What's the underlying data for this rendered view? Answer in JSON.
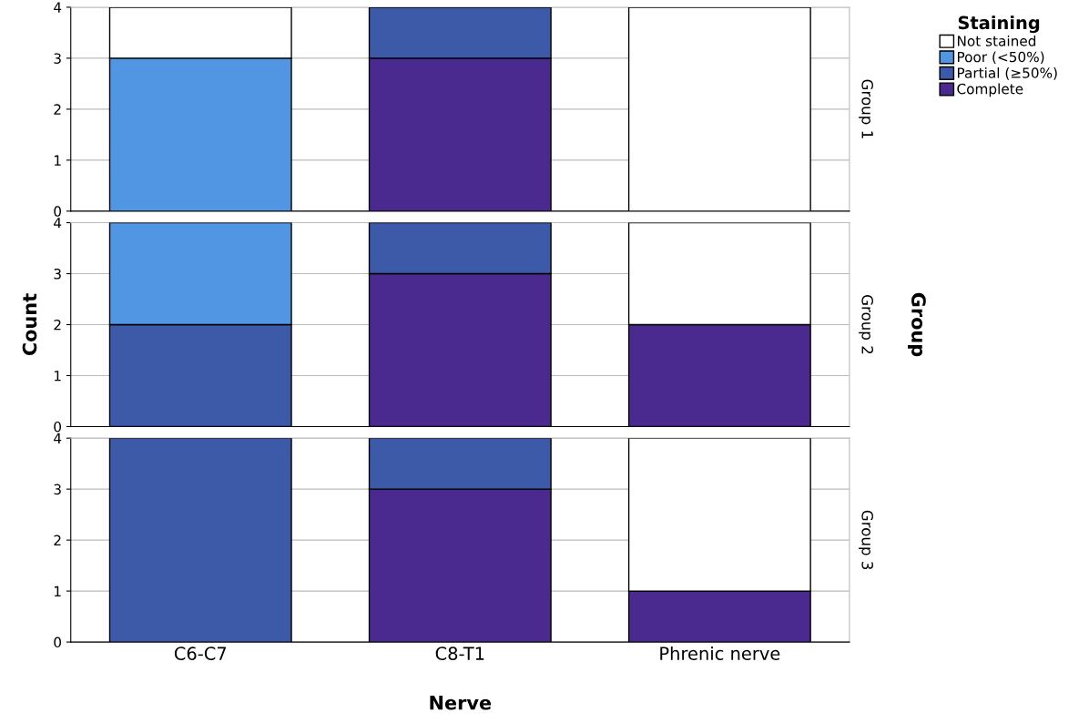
{
  "chart_data": [
    {
      "type": "bar",
      "stacked": true,
      "categories": [
        null,
        null,
        null
      ],
      "y2label": "Group 1",
      "legend_title": "Staining",
      "legend": "right",
      "ylim": [
        0,
        4
      ],
      "yticks": [
        0,
        1,
        2,
        3,
        4
      ],
      "grid": "y",
      "tick_labels": "y",
      "series": [
        {
          "name": "Complete",
          "color": "#4b2a8f",
          "values": [
            0,
            3,
            0
          ]
        },
        {
          "name": "Partial (≥50%)",
          "color": "#3c5aa8",
          "values": [
            0,
            1,
            0
          ]
        },
        {
          "name": "Poor (<50%)",
          "color": "#5196e2",
          "values": [
            3,
            0,
            0
          ]
        },
        {
          "name": "Not stained",
          "color": "#ffffff",
          "values": [
            1,
            0,
            4
          ]
        }
      ]
    },
    {
      "type": "bar",
      "stacked": true,
      "categories": [
        null,
        null,
        null
      ],
      "y2label": "Group 2",
      "ylabel": "Count",
      "annotations": [
        "Group"
      ],
      "ylim": [
        0,
        4
      ],
      "yticks": [
        0,
        1,
        2,
        3,
        4
      ],
      "grid": "y",
      "tick_labels": "y",
      "series": [
        {
          "color": "#4b2a8f",
          "values": [
            0,
            3,
            2
          ]
        },
        {
          "color": "#3c5aa8",
          "values": [
            2,
            1,
            0
          ]
        },
        {
          "color": "#5196e2",
          "values": [
            2,
            0,
            0
          ]
        },
        {
          "color": "#ffffff",
          "values": [
            0,
            0,
            2
          ]
        }
      ]
    },
    {
      "type": "bar",
      "stacked": true,
      "categories": [
        "C6-C7",
        "C8-T1",
        "Phrenic nerve"
      ],
      "y2label": "Group 3",
      "xlabel": "Nerve",
      "ylim": [
        0,
        4
      ],
      "yticks": [
        0,
        1,
        2,
        3,
        4
      ],
      "grid": "y",
      "series": [
        {
          "color": "#4b2a8f",
          "values": [
            0,
            3,
            1
          ]
        },
        {
          "color": "#3c5aa8",
          "values": [
            4,
            1,
            0
          ]
        },
        {
          "color": "#5196e2",
          "values": [
            0,
            0,
            0
          ]
        },
        {
          "color": "#ffffff",
          "values": [
            0,
            0,
            3
          ]
        }
      ]
    }
  ]
}
